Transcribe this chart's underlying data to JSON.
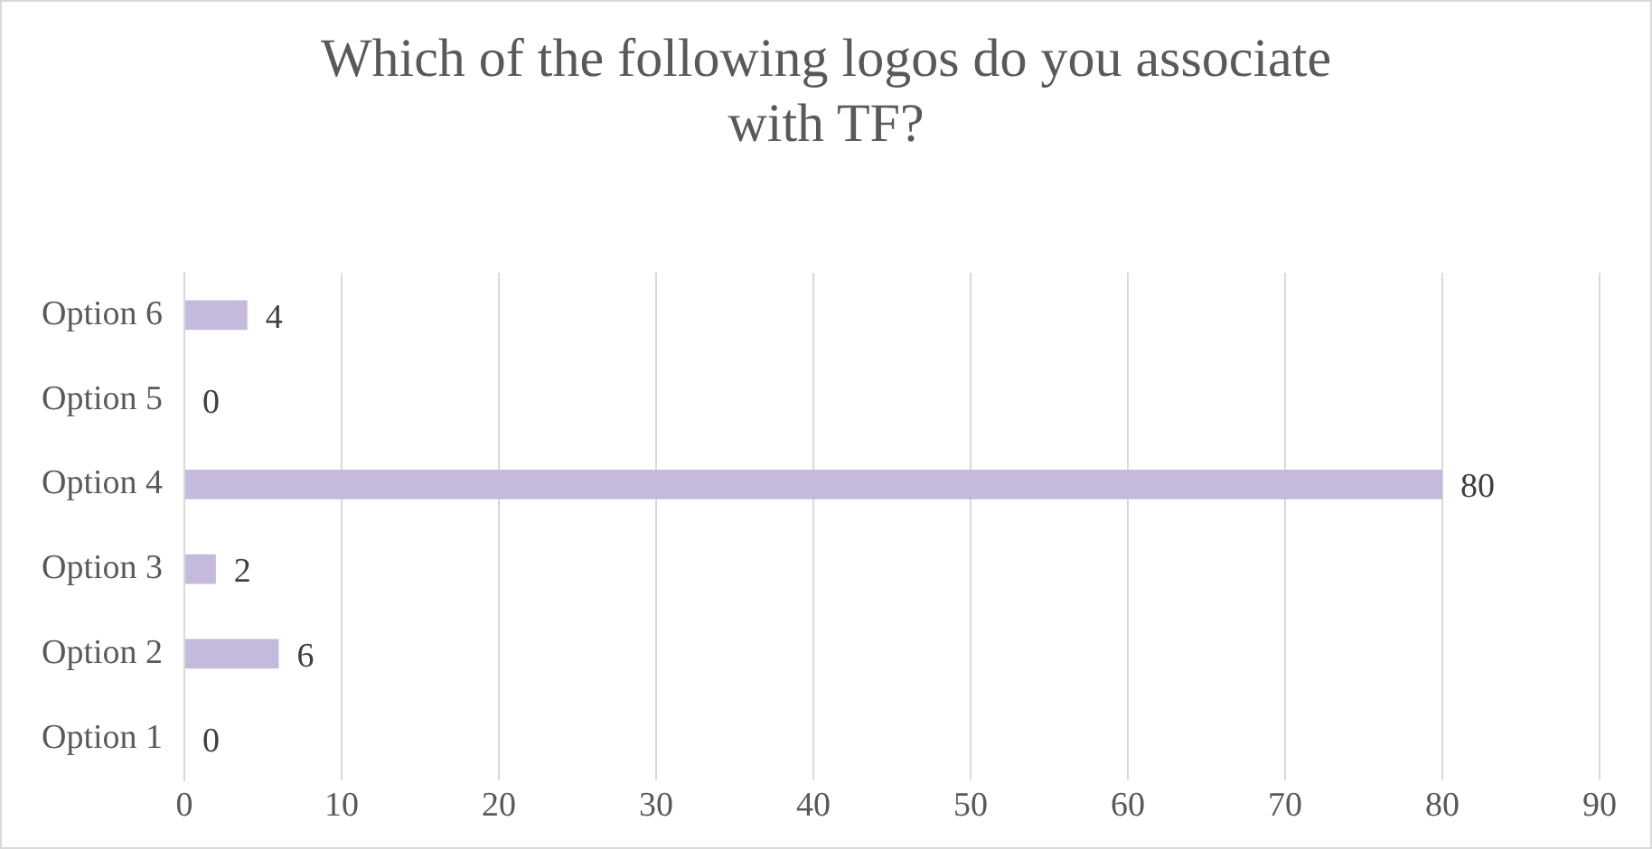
{
  "chart_data": {
    "type": "bar",
    "orientation": "horizontal",
    "title": "Which of the following logos do you associate with TF?",
    "categories": [
      "Option 6",
      "Option 5",
      "Option 4",
      "Option 3",
      "Option 2",
      "Option 1"
    ],
    "values": [
      4,
      0,
      80,
      2,
      6,
      0
    ],
    "color": "#c5b9dc",
    "xlim": [
      0,
      90
    ],
    "xticks": [
      0,
      10,
      20,
      30,
      40,
      50,
      60,
      70,
      80,
      90
    ],
    "grid": "x",
    "legend": false,
    "data_labels": true
  }
}
